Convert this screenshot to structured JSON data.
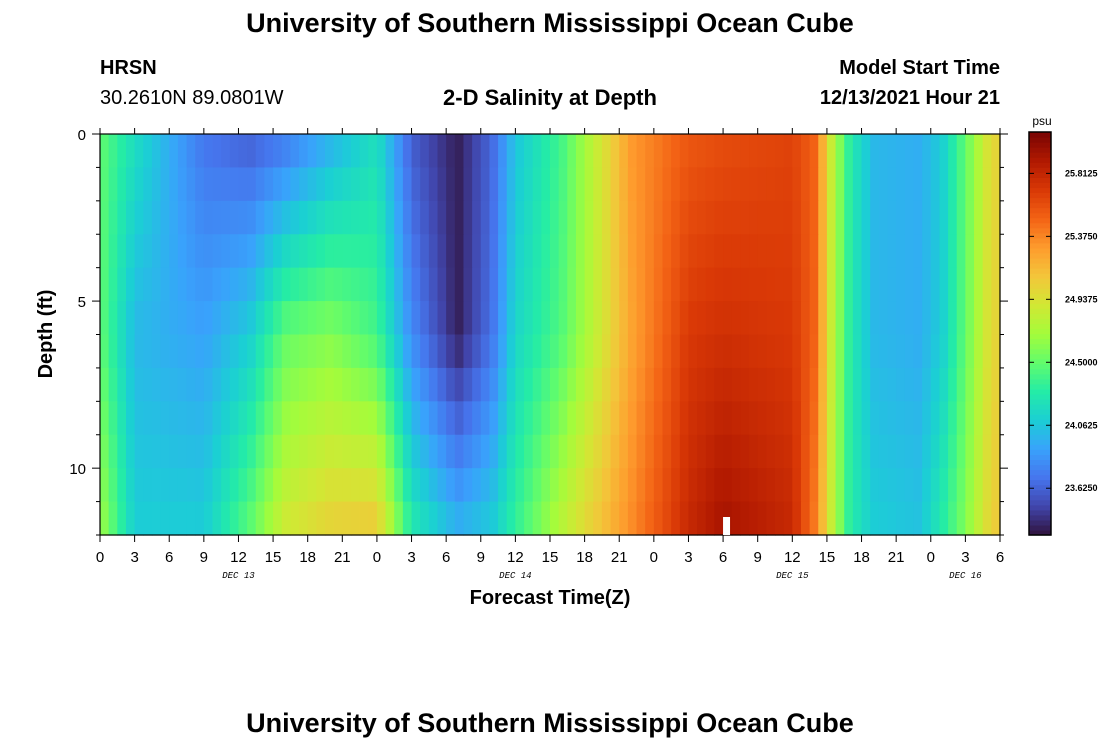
{
  "page": {
    "title": "University of Southern Mississippi Ocean Cube",
    "title_repeat": "University of Southern Mississippi Ocean Cube",
    "station": "HRSN",
    "coords": "30.2610N  89.0801W",
    "plot_title": "2-D Salinity at Depth",
    "model_start_label": "Model Start Time",
    "model_start_value": "12/13/2021 Hour 21"
  },
  "chart_data": {
    "type": "heatmap",
    "title": "2-D Salinity at Depth",
    "xlabel": "Forecast Time(Z)",
    "ylabel": "Depth (ft)",
    "x_range_hours": [
      0,
      78
    ],
    "y_range_ft": [
      0,
      12
    ],
    "y_ticks": [
      "0",
      "5",
      "10"
    ],
    "x_tick_labels": [
      "0",
      "3",
      "6",
      "9",
      "12",
      "15",
      "18",
      "21",
      "0",
      "3",
      "6",
      "9",
      "12",
      "15",
      "18",
      "21",
      "0",
      "3",
      "6",
      "9",
      "12",
      "15",
      "18",
      "21",
      "0",
      "3",
      "6"
    ],
    "date_labels": [
      {
        "text": "DEC 13",
        "hour": 12
      },
      {
        "text": "DEC 14",
        "hour": 36
      },
      {
        "text": "DEC 15",
        "hour": 60
      },
      {
        "text": "DEC 16",
        "hour": 75
      }
    ],
    "now_marker_hour": 54.3,
    "colorbar": {
      "unit": "psu",
      "min": 23.3,
      "max": 26.1,
      "tick_values": [
        25.8125,
        25.375,
        24.9375,
        24.5,
        24.0625,
        23.625
      ],
      "tick_labels": [
        "25.8125",
        "25.3750",
        "24.9375",
        "24.5000",
        "24.0625",
        "23.6250"
      ]
    },
    "keypoints_salinity_psu": [
      {
        "hour": 0,
        "surface": 24.5,
        "mid": 24.5,
        "bottom": 24.7
      },
      {
        "hour": 3,
        "surface": 24.2,
        "mid": 24.0,
        "bottom": 24.1
      },
      {
        "hour": 9,
        "surface": 23.7,
        "mid": 23.9,
        "bottom": 24.1
      },
      {
        "hour": 13,
        "surface": 23.6,
        "mid": 24.1,
        "bottom": 24.5
      },
      {
        "hour": 16,
        "surface": 23.7,
        "mid": 24.5,
        "bottom": 24.9
      },
      {
        "hour": 20,
        "surface": 23.95,
        "mid": 24.6,
        "bottom": 25.05
      },
      {
        "hour": 24,
        "surface": 24.2,
        "mid": 24.4,
        "bottom": 25.1
      },
      {
        "hour": 27,
        "surface": 23.6,
        "mid": 23.8,
        "bottom": 24.3
      },
      {
        "hour": 31,
        "surface": 23.35,
        "mid": 23.35,
        "bottom": 24.0
      },
      {
        "hour": 34,
        "surface": 23.65,
        "mid": 23.7,
        "bottom": 24.1
      },
      {
        "hour": 36,
        "surface": 24.05,
        "mid": 24.15,
        "bottom": 24.35
      },
      {
        "hour": 40,
        "surface": 24.4,
        "mid": 24.45,
        "bottom": 24.8
      },
      {
        "hour": 42,
        "surface": 24.7,
        "mid": 24.7,
        "bottom": 25.0
      },
      {
        "hour": 46,
        "surface": 25.3,
        "mid": 25.25,
        "bottom": 25.35
      },
      {
        "hour": 51,
        "surface": 25.55,
        "mid": 25.7,
        "bottom": 25.8
      },
      {
        "hour": 54,
        "surface": 25.6,
        "mid": 25.75,
        "bottom": 25.95
      },
      {
        "hour": 60,
        "surface": 25.65,
        "mid": 25.7,
        "bottom": 25.8
      },
      {
        "hour": 62,
        "surface": 25.5,
        "mid": 25.5,
        "bottom": 25.4
      },
      {
        "hour": 63.5,
        "surface": 24.8,
        "mid": 24.8,
        "bottom": 24.8
      },
      {
        "hour": 65,
        "surface": 24.3,
        "mid": 24.3,
        "bottom": 24.3
      },
      {
        "hour": 67,
        "surface": 24.0,
        "mid": 24.0,
        "bottom": 24.1
      },
      {
        "hour": 71,
        "surface": 23.95,
        "mid": 23.95,
        "bottom": 24.05
      },
      {
        "hour": 73,
        "surface": 24.1,
        "mid": 24.1,
        "bottom": 24.3
      },
      {
        "hour": 75,
        "surface": 24.5,
        "mid": 24.5,
        "bottom": 24.6
      },
      {
        "hour": 77,
        "surface": 24.95,
        "mid": 24.95,
        "bottom": 25.0
      },
      {
        "hour": 78,
        "surface": 25.05,
        "mid": 25.05,
        "bottom": 25.1
      }
    ]
  },
  "colors": {
    "palette": [
      "#30123b",
      "#4145ab",
      "#4675ed",
      "#39a2fc",
      "#1bcfd4",
      "#24eca6",
      "#61fc6c",
      "#a4fc3b",
      "#d1e834",
      "#f3c63a",
      "#fe9b2d",
      "#f36315",
      "#d93806",
      "#b11901",
      "#7a0403"
    ]
  }
}
